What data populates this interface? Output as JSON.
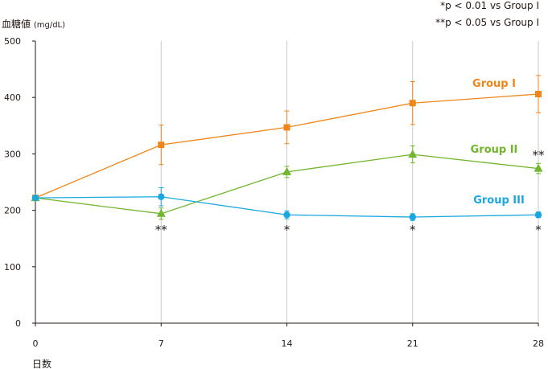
{
  "chart_data": {
    "type": "line",
    "ylabel": "血糖値",
    "ylabel_unit": "(mg/dL)",
    "xlabel": "日数",
    "x": [
      0,
      7,
      14,
      21,
      28
    ],
    "xlim": [
      0,
      28
    ],
    "ylim": [
      0,
      500
    ],
    "yticks": [
      0,
      100,
      200,
      300,
      400,
      500
    ],
    "xticks": [
      0,
      7,
      14,
      21,
      28
    ],
    "grid": "vertical",
    "notes": [
      "*p < 0.01 vs Group I",
      "**p < 0.05 vs Group I"
    ],
    "series": [
      {
        "name": "Group I",
        "color": "#f08519",
        "marker": "square",
        "values": [
          222,
          316,
          347,
          390,
          406
        ],
        "error": [
          4,
          35,
          29,
          38,
          33
        ]
      },
      {
        "name": "Group II",
        "color": "#71b62c",
        "marker": "triangle",
        "values": [
          222,
          194,
          268,
          299,
          274
        ],
        "error": [
          4,
          10,
          10,
          15,
          9
        ],
        "significance": [
          "",
          "**",
          "",
          "",
          "**"
        ]
      },
      {
        "name": "Group III",
        "color": "#1aa7df",
        "marker": "circle",
        "values": [
          222,
          224,
          192,
          188,
          192
        ],
        "error": [
          3,
          16,
          7,
          6,
          5
        ],
        "significance": [
          "",
          "",
          "*",
          "*",
          "*"
        ]
      }
    ]
  }
}
